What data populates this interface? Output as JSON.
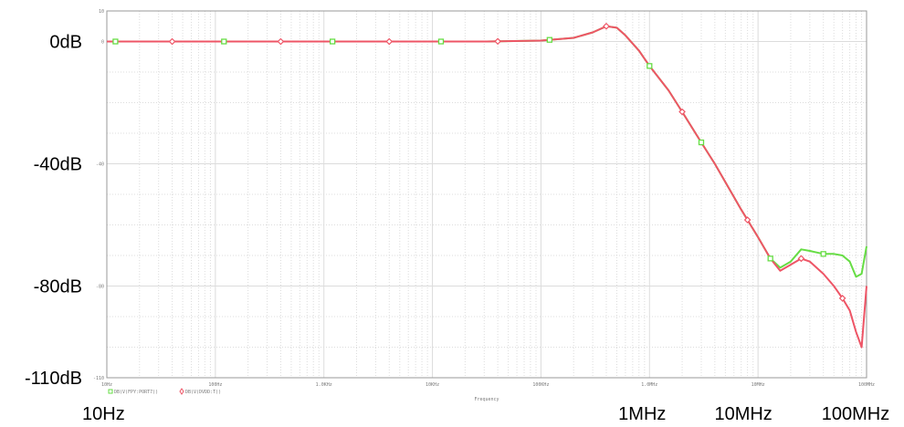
{
  "chart_data": {
    "type": "line",
    "title": "",
    "xlabel": "Frequency",
    "ylabel": "",
    "x_scale": "log",
    "xlim": [
      10,
      100000000
    ],
    "ylim": [
      -110,
      10
    ],
    "grid": true,
    "legend": "bottom-left",
    "y_tick_labels_large": [
      "0dB",
      "-40dB",
      "-80dB",
      "-110dB"
    ],
    "y_tick_values_large": [
      0,
      -40,
      -80,
      -110
    ],
    "y_tick_labels_small": [
      "10",
      "0",
      "-40",
      "-80",
      "-110"
    ],
    "y_tick_values_small": [
      10,
      0,
      -40,
      -80,
      -110
    ],
    "x_tick_labels_large": [
      "10Hz",
      "1MHz",
      "10MHz",
      "100MHz"
    ],
    "x_tick_values_large": [
      10,
      1000000,
      10000000,
      100000000
    ],
    "x_tick_labels_small": [
      "10Hz",
      "100Hz",
      "1.0KHz",
      "10KHz",
      "100KHz",
      "1.0MHz",
      "10MHz",
      "100MHz"
    ],
    "x_tick_values_small": [
      10,
      100,
      1000,
      10000,
      100000,
      1000000,
      10000000,
      100000000
    ],
    "series": [
      {
        "name": "DB(V(FPY:PORT7))",
        "color": "#66dd44",
        "marker": "square",
        "x": [
          10,
          100,
          1000,
          10000,
          100000,
          200000,
          300000,
          400000,
          500000,
          700000,
          1000000,
          2000000,
          3000000,
          4000000,
          6000000,
          8000000,
          10000000,
          15000000,
          20000000,
          30000000,
          40000000,
          50000000,
          60000000,
          80000000,
          100000000
        ],
        "values": [
          0,
          0,
          0,
          0,
          0,
          0.5,
          1.5,
          3,
          5,
          -2,
          -8,
          -25,
          -35,
          -43,
          -53,
          -61,
          -67,
          -74,
          -73,
          -69,
          -68.5,
          -69,
          -69.5,
          -69.5,
          -69.8
        ]
      },
      {
        "name": "DB(V(DVDD:T))",
        "color": "#ee5566",
        "marker": "diamond",
        "x": [
          10,
          100,
          1000,
          10000,
          100000,
          200000,
          300000,
          400000,
          500000,
          700000,
          1000000,
          2000000,
          3000000,
          4000000,
          6000000,
          8000000,
          10000000,
          15000000,
          20000000,
          30000000,
          40000000,
          50000000,
          60000000,
          80000000,
          100000000
        ],
        "values": [
          0,
          0,
          0,
          0,
          0,
          0.5,
          1.5,
          3,
          5,
          -2,
          -8,
          -25,
          -35,
          -43,
          -53,
          -61,
          -67,
          -75,
          -74,
          -72,
          -72,
          -75,
          -78,
          -82,
          -86
        ]
      }
    ],
    "series_extended": [
      {
        "name": "DB(V(FPY:PORT7))",
        "x": [
          10,
          31.6,
          100,
          316,
          1000,
          3160,
          10000,
          31600,
          100000,
          200000,
          300000,
          400000,
          500000,
          600000,
          800000,
          1000000,
          1500000,
          2000000,
          3000000,
          4000000,
          5000000,
          7000000,
          10000000,
          13000000,
          16000000,
          20000000,
          25000000,
          30000000,
          40000000,
          50000000,
          60000000,
          70000000,
          80000000,
          90000000,
          100000000
        ],
        "values": [
          0,
          0,
          0,
          0,
          0,
          0,
          0,
          0,
          0.3,
          1.2,
          3,
          5,
          4.5,
          2,
          -3,
          -8,
          -16,
          -23,
          -33,
          -40,
          -46,
          -55,
          -64,
          -71,
          -74,
          -72,
          -68,
          -68.5,
          -69.5,
          -69.5,
          -70,
          -72,
          -77,
          -76,
          -67
        ]
      },
      {
        "name": "DB(V(DVDD:T))",
        "x": [
          10,
          31.6,
          100,
          316,
          1000,
          3160,
          10000,
          31600,
          100000,
          200000,
          300000,
          400000,
          500000,
          600000,
          800000,
          1000000,
          1500000,
          2000000,
          3000000,
          4000000,
          5000000,
          7000000,
          10000000,
          13000000,
          16000000,
          20000000,
          25000000,
          30000000,
          40000000,
          50000000,
          60000000,
          70000000,
          80000000,
          90000000,
          100000000
        ],
        "values": [
          0,
          0,
          0,
          0,
          0,
          0,
          0,
          0,
          0.3,
          1.2,
          3,
          5,
          4.5,
          2,
          -3,
          -8,
          -16,
          -23,
          -33,
          -40,
          -46,
          -55,
          -64,
          -71,
          -75,
          -73,
          -71,
          -72,
          -76,
          -80,
          -84,
          -88,
          -95,
          -100,
          -80
        ]
      }
    ]
  }
}
